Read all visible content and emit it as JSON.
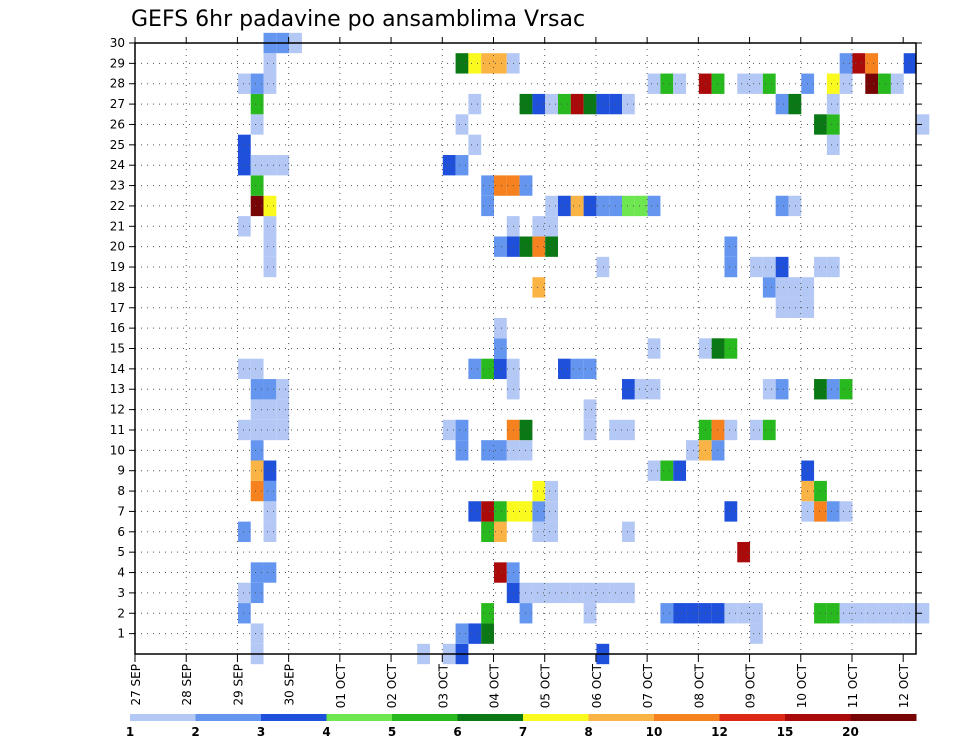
{
  "chart_data": {
    "type": "heatmap",
    "title": "GEFS 6hr padavine po ansamblima Vrsac",
    "x_ticks": [
      "27 SEP",
      "28 SEP",
      "29 SEP",
      "30 SEP",
      "01 OCT",
      "02 OCT",
      "03 OCT",
      "04 OCT",
      "05 OCT",
      "06 OCT",
      "07 OCT",
      "08 OCT",
      "09 OCT",
      "10 OCT",
      "11 OCT",
      "12 OCT"
    ],
    "y_ticks": [
      "1",
      "2",
      "3",
      "4",
      "5",
      "6",
      "7",
      "8",
      "9",
      "10",
      "11",
      "12",
      "13",
      "14",
      "15",
      "16",
      "17",
      "18",
      "19",
      "20",
      "21",
      "22",
      "23",
      "24",
      "25",
      "26",
      "27",
      "28",
      "29",
      "30"
    ],
    "x_range": [
      0,
      61
    ],
    "y_range": [
      0,
      30
    ],
    "grid": true,
    "legend_placement": "bottom",
    "legend": {
      "labels": [
        "1",
        "2",
        "3",
        "4",
        "5",
        "6",
        "7",
        "8",
        "10",
        "12",
        "15",
        "20"
      ],
      "colors": [
        "#b4c8f5",
        "#6496f0",
        "#1e50dc",
        "#6ee650",
        "#28b91e",
        "#0a7814",
        "#fafa1e",
        "#fab446",
        "#f5821e",
        "#dc2814",
        "#aa0a0a",
        "#780505"
      ]
    },
    "cells": [
      [
        9,
        0,
        1
      ],
      [
        22,
        0,
        1
      ],
      [
        24,
        0,
        1
      ],
      [
        25,
        0,
        3
      ],
      [
        25,
        1,
        2
      ],
      [
        26,
        1,
        1
      ],
      [
        36,
        0,
        3
      ],
      [
        9,
        1,
        1
      ],
      [
        26,
        1,
        3
      ],
      [
        27,
        1,
        6
      ],
      [
        48,
        1,
        1
      ],
      [
        8,
        2,
        2
      ],
      [
        27,
        2,
        5
      ],
      [
        30,
        2,
        2
      ],
      [
        35,
        2,
        1
      ],
      [
        41,
        2,
        2
      ],
      [
        42,
        2,
        3
      ],
      [
        43,
        2,
        3
      ],
      [
        44,
        2,
        3
      ],
      [
        45,
        2,
        3
      ],
      [
        46,
        2,
        1
      ],
      [
        47,
        2,
        1
      ],
      [
        48,
        2,
        1
      ],
      [
        53,
        2,
        5
      ],
      [
        54,
        2,
        5
      ],
      [
        55,
        2,
        1
      ],
      [
        56,
        2,
        1
      ],
      [
        57,
        2,
        1
      ],
      [
        58,
        2,
        1
      ],
      [
        59,
        2,
        1
      ],
      [
        60,
        2,
        1
      ],
      [
        61,
        2,
        1
      ],
      [
        8,
        3,
        1
      ],
      [
        9,
        3,
        2
      ],
      [
        29,
        3,
        3
      ],
      [
        30,
        3,
        1
      ],
      [
        31,
        3,
        1
      ],
      [
        32,
        3,
        1
      ],
      [
        33,
        3,
        1
      ],
      [
        34,
        3,
        1
      ],
      [
        35,
        3,
        1
      ],
      [
        36,
        3,
        1
      ],
      [
        37,
        3,
        1
      ],
      [
        38,
        3,
        1
      ],
      [
        9,
        4,
        2
      ],
      [
        10,
        4,
        2
      ],
      [
        28,
        4,
        11
      ],
      [
        29,
        4,
        2
      ],
      [
        47,
        5,
        11
      ],
      [
        8,
        6,
        2
      ],
      [
        10,
        6,
        1
      ],
      [
        27,
        6,
        5
      ],
      [
        28,
        6,
        8
      ],
      [
        31,
        6,
        1
      ],
      [
        32,
        6,
        1
      ],
      [
        38,
        6,
        1
      ],
      [
        10,
        7,
        1
      ],
      [
        26,
        7,
        3
      ],
      [
        27,
        7,
        11
      ],
      [
        28,
        7,
        5
      ],
      [
        29,
        7,
        7
      ],
      [
        30,
        7,
        7
      ],
      [
        31,
        7,
        2
      ],
      [
        32,
        7,
        1
      ],
      [
        46,
        7,
        3
      ],
      [
        52,
        7,
        1
      ],
      [
        53,
        7,
        9
      ],
      [
        54,
        7,
        2
      ],
      [
        55,
        7,
        1
      ],
      [
        9,
        8,
        9
      ],
      [
        10,
        8,
        2
      ],
      [
        31,
        8,
        7
      ],
      [
        32,
        8,
        1
      ],
      [
        52,
        8,
        8
      ],
      [
        53,
        8,
        5
      ],
      [
        9,
        9,
        8
      ],
      [
        10,
        9,
        3
      ],
      [
        40,
        9,
        1
      ],
      [
        41,
        9,
        5
      ],
      [
        42,
        9,
        3
      ],
      [
        52,
        9,
        3
      ],
      [
        9,
        10,
        2
      ],
      [
        25,
        10,
        2
      ],
      [
        27,
        10,
        2
      ],
      [
        28,
        10,
        2
      ],
      [
        29,
        10,
        1
      ],
      [
        30,
        10,
        1
      ],
      [
        43,
        10,
        1
      ],
      [
        44,
        10,
        8
      ],
      [
        45,
        10,
        2
      ],
      [
        8,
        11,
        1
      ],
      [
        9,
        11,
        1
      ],
      [
        10,
        11,
        1
      ],
      [
        11,
        11,
        1
      ],
      [
        24,
        11,
        1
      ],
      [
        25,
        11,
        2
      ],
      [
        29,
        11,
        9
      ],
      [
        30,
        11,
        6
      ],
      [
        35,
        11,
        1
      ],
      [
        37,
        11,
        1
      ],
      [
        38,
        11,
        1
      ],
      [
        44,
        11,
        5
      ],
      [
        45,
        11,
        9
      ],
      [
        46,
        11,
        1
      ],
      [
        48,
        11,
        1
      ],
      [
        49,
        11,
        5
      ],
      [
        9,
        12,
        1
      ],
      [
        10,
        12,
        1
      ],
      [
        11,
        12,
        1
      ],
      [
        35,
        12,
        1
      ],
      [
        9,
        13,
        2
      ],
      [
        10,
        13,
        2
      ],
      [
        11,
        13,
        1
      ],
      [
        29,
        13,
        1
      ],
      [
        38,
        13,
        3
      ],
      [
        39,
        13,
        1
      ],
      [
        40,
        13,
        1
      ],
      [
        49,
        13,
        1
      ],
      [
        50,
        13,
        2
      ],
      [
        53,
        13,
        6
      ],
      [
        54,
        13,
        2
      ],
      [
        55,
        13,
        5
      ],
      [
        8,
        14,
        1
      ],
      [
        9,
        14,
        1
      ],
      [
        26,
        14,
        2
      ],
      [
        27,
        14,
        5
      ],
      [
        28,
        14,
        3
      ],
      [
        29,
        14,
        1
      ],
      [
        33,
        14,
        3
      ],
      [
        34,
        14,
        2
      ],
      [
        35,
        14,
        2
      ],
      [
        28,
        15,
        2
      ],
      [
        40,
        15,
        1
      ],
      [
        44,
        15,
        1
      ],
      [
        45,
        15,
        6
      ],
      [
        46,
        15,
        5
      ],
      [
        28,
        16,
        1
      ],
      [
        50,
        17,
        1
      ],
      [
        51,
        17,
        1
      ],
      [
        52,
        17,
        1
      ],
      [
        31,
        18,
        8
      ],
      [
        49,
        18,
        2
      ],
      [
        50,
        18,
        1
      ],
      [
        51,
        18,
        1
      ],
      [
        52,
        18,
        1
      ],
      [
        10,
        19,
        1
      ],
      [
        36,
        19,
        1
      ],
      [
        46,
        19,
        2
      ],
      [
        48,
        19,
        1
      ],
      [
        49,
        19,
        1
      ],
      [
        50,
        19,
        3
      ],
      [
        53,
        19,
        1
      ],
      [
        54,
        19,
        1
      ],
      [
        10,
        20,
        1
      ],
      [
        28,
        20,
        2
      ],
      [
        29,
        20,
        3
      ],
      [
        30,
        20,
        6
      ],
      [
        31,
        20,
        9
      ],
      [
        32,
        20,
        6
      ],
      [
        46,
        20,
        2
      ],
      [
        8,
        21,
        1
      ],
      [
        10,
        21,
        1
      ],
      [
        29,
        21,
        1
      ],
      [
        31,
        21,
        1
      ],
      [
        32,
        21,
        1
      ],
      [
        9,
        22,
        12
      ],
      [
        10,
        22,
        7
      ],
      [
        27,
        22,
        2
      ],
      [
        32,
        22,
        1
      ],
      [
        33,
        22,
        3
      ],
      [
        34,
        22,
        8
      ],
      [
        35,
        22,
        3
      ],
      [
        36,
        22,
        2
      ],
      [
        37,
        22,
        2
      ],
      [
        38,
        22,
        4
      ],
      [
        39,
        22,
        4
      ],
      [
        40,
        22,
        2
      ],
      [
        50,
        22,
        2
      ],
      [
        51,
        22,
        1
      ],
      [
        9,
        23,
        5
      ],
      [
        27,
        23,
        2
      ],
      [
        28,
        23,
        9
      ],
      [
        29,
        23,
        9
      ],
      [
        30,
        23,
        2
      ],
      [
        8,
        24,
        3
      ],
      [
        9,
        24,
        1
      ],
      [
        10,
        24,
        1
      ],
      [
        11,
        24,
        1
      ],
      [
        24,
        24,
        3
      ],
      [
        25,
        24,
        2
      ],
      [
        8,
        25,
        3
      ],
      [
        26,
        25,
        1
      ],
      [
        54,
        25,
        1
      ],
      [
        9,
        26,
        1
      ],
      [
        25,
        26,
        1
      ],
      [
        53,
        26,
        6
      ],
      [
        54,
        26,
        5
      ],
      [
        61,
        26,
        1
      ],
      [
        9,
        27,
        5
      ],
      [
        26,
        27,
        1
      ],
      [
        30,
        27,
        6
      ],
      [
        31,
        27,
        3
      ],
      [
        32,
        27,
        1
      ],
      [
        33,
        27,
        5
      ],
      [
        34,
        27,
        11
      ],
      [
        35,
        27,
        6
      ],
      [
        36,
        27,
        3
      ],
      [
        37,
        27,
        3
      ],
      [
        38,
        27,
        1
      ],
      [
        50,
        27,
        2
      ],
      [
        51,
        27,
        6
      ],
      [
        54,
        27,
        1
      ],
      [
        8,
        28,
        1
      ],
      [
        9,
        28,
        2
      ],
      [
        10,
        28,
        1
      ],
      [
        40,
        28,
        1
      ],
      [
        41,
        28,
        5
      ],
      [
        42,
        28,
        1
      ],
      [
        44,
        28,
        11
      ],
      [
        45,
        28,
        5
      ],
      [
        47,
        28,
        1
      ],
      [
        48,
        28,
        1
      ],
      [
        49,
        28,
        5
      ],
      [
        52,
        28,
        2
      ],
      [
        54,
        28,
        7
      ],
      [
        55,
        28,
        1
      ],
      [
        57,
        28,
        12
      ],
      [
        58,
        28,
        5
      ],
      [
        59,
        28,
        1
      ],
      [
        10,
        29,
        1
      ],
      [
        25,
        29,
        6
      ],
      [
        26,
        29,
        7
      ],
      [
        27,
        29,
        8
      ],
      [
        28,
        29,
        8
      ],
      [
        29,
        29,
        1
      ],
      [
        55,
        29,
        2
      ],
      [
        56,
        29,
        11
      ],
      [
        57,
        29,
        9
      ],
      [
        60,
        29,
        3
      ],
      [
        10,
        30,
        2
      ],
      [
        11,
        30,
        2
      ],
      [
        12,
        30,
        1
      ]
    ]
  }
}
